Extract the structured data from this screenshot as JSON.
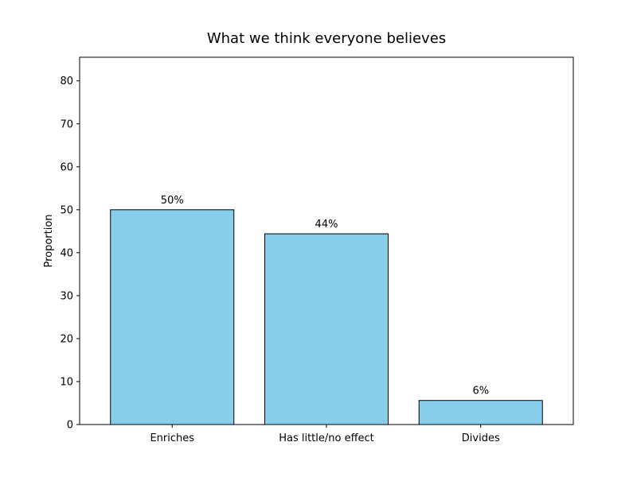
{
  "chart_data": {
    "type": "bar",
    "title": "What we think everyone believes",
    "xlabel": "",
    "ylabel": "Proportion",
    "categories": [
      "Enriches",
      "Has little/no effect",
      "Divides"
    ],
    "values": [
      50,
      44.4,
      5.6
    ],
    "data_labels": [
      "50%",
      "44%",
      "6%"
    ],
    "ylim": [
      0,
      85.5
    ],
    "yticks": [
      0,
      10,
      20,
      30,
      40,
      50,
      60,
      70,
      80
    ],
    "grid": false,
    "bar_color": "#87CEEB",
    "edge_color": "#000000"
  }
}
